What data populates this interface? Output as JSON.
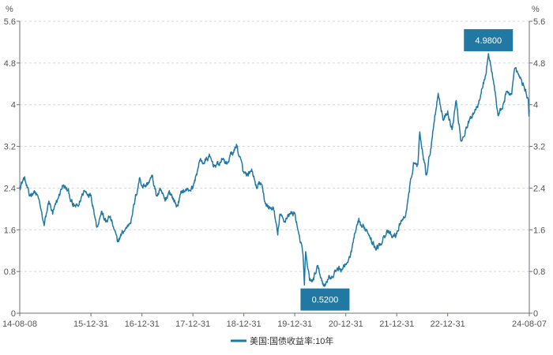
{
  "chart_data": {
    "type": "line",
    "unit_left": "%",
    "unit_right": "%",
    "y_ticks": [
      "0",
      "0.8",
      "1.6",
      "2.4",
      "3.2",
      "4",
      "4.8",
      "5.6"
    ],
    "ylim": [
      0,
      5.6
    ],
    "x_tick_labels": [
      "14-08-08",
      "15-12-31",
      "16-12-31",
      "17-12-31",
      "18-12-31",
      "19-12-31",
      "20-12-31",
      "21-12-31",
      "22-12-31",
      "24-08-07"
    ],
    "x_tick_dates": [
      "2014-08-08",
      "2015-12-31",
      "2016-12-31",
      "2017-12-31",
      "2018-12-31",
      "2019-12-31",
      "2020-12-31",
      "2021-12-31",
      "2022-12-31",
      "2024-08-07"
    ],
    "xlim": [
      "2014-08-08",
      "2024-08-07"
    ],
    "grid": "horizontal dashed",
    "legend_position": "bottom-center",
    "series": [
      {
        "name": "美国:国债收益率:10年",
        "color": "#2179a3",
        "points": [
          [
            "2014-08-08",
            2.42
          ],
          [
            "2014-09-10",
            2.6
          ],
          [
            "2014-10-15",
            2.25
          ],
          [
            "2014-11-20",
            2.35
          ],
          [
            "2014-12-20",
            2.2
          ],
          [
            "2015-01-30",
            1.68
          ],
          [
            "2015-03-05",
            2.15
          ],
          [
            "2015-04-01",
            1.9
          ],
          [
            "2015-05-10",
            2.2
          ],
          [
            "2015-06-10",
            2.45
          ],
          [
            "2015-07-20",
            2.35
          ],
          [
            "2015-08-25",
            2.05
          ],
          [
            "2015-10-01",
            2.05
          ],
          [
            "2015-11-10",
            2.35
          ],
          [
            "2015-12-31",
            2.27
          ],
          [
            "2016-01-20",
            2.0
          ],
          [
            "2016-02-11",
            1.65
          ],
          [
            "2016-03-15",
            1.95
          ],
          [
            "2016-04-15",
            1.75
          ],
          [
            "2016-05-15",
            1.85
          ],
          [
            "2016-06-15",
            1.6
          ],
          [
            "2016-07-08",
            1.37
          ],
          [
            "2016-08-15",
            1.55
          ],
          [
            "2016-09-15",
            1.65
          ],
          [
            "2016-10-15",
            1.8
          ],
          [
            "2016-11-10",
            2.15
          ],
          [
            "2016-12-15",
            2.6
          ],
          [
            "2016-12-31",
            2.45
          ],
          [
            "2017-01-31",
            2.45
          ],
          [
            "2017-03-13",
            2.62
          ],
          [
            "2017-04-15",
            2.25
          ],
          [
            "2017-05-15",
            2.35
          ],
          [
            "2017-06-15",
            2.15
          ],
          [
            "2017-07-15",
            2.35
          ],
          [
            "2017-09-07",
            2.05
          ],
          [
            "2017-10-15",
            2.35
          ],
          [
            "2017-11-15",
            2.35
          ],
          [
            "2017-12-31",
            2.41
          ],
          [
            "2018-01-31",
            2.72
          ],
          [
            "2018-02-21",
            2.95
          ],
          [
            "2018-03-20",
            2.88
          ],
          [
            "2018-04-25",
            3.0
          ],
          [
            "2018-05-30",
            2.85
          ],
          [
            "2018-06-30",
            2.85
          ],
          [
            "2018-07-31",
            2.96
          ],
          [
            "2018-08-31",
            2.86
          ],
          [
            "2018-09-30",
            3.05
          ],
          [
            "2018-10-25",
            3.12
          ],
          [
            "2018-11-08",
            3.24
          ],
          [
            "2018-11-30",
            3.0
          ],
          [
            "2018-12-31",
            2.69
          ],
          [
            "2019-01-31",
            2.63
          ],
          [
            "2019-02-28",
            2.72
          ],
          [
            "2019-03-31",
            2.41
          ],
          [
            "2019-04-30",
            2.5
          ],
          [
            "2019-05-31",
            2.14
          ],
          [
            "2019-06-30",
            2.0
          ],
          [
            "2019-07-31",
            2.02
          ],
          [
            "2019-08-31",
            1.5
          ],
          [
            "2019-09-15",
            1.9
          ],
          [
            "2019-10-15",
            1.75
          ],
          [
            "2019-11-15",
            1.9
          ],
          [
            "2019-12-31",
            1.92
          ],
          [
            "2020-01-31",
            1.51
          ],
          [
            "2020-02-28",
            1.13
          ],
          [
            "2020-03-09",
            0.54
          ],
          [
            "2020-03-18",
            1.18
          ],
          [
            "2020-04-15",
            0.63
          ],
          [
            "2020-05-15",
            0.64
          ],
          [
            "2020-06-08",
            0.91
          ],
          [
            "2020-07-15",
            0.62
          ],
          [
            "2020-08-04",
            0.52
          ],
          [
            "2020-08-31",
            0.72
          ],
          [
            "2020-09-30",
            0.68
          ],
          [
            "2020-10-31",
            0.87
          ],
          [
            "2020-11-30",
            0.84
          ],
          [
            "2020-12-31",
            0.93
          ],
          [
            "2021-01-31",
            1.07
          ],
          [
            "2021-02-28",
            1.44
          ],
          [
            "2021-03-31",
            1.74
          ],
          [
            "2021-04-30",
            1.65
          ],
          [
            "2021-05-31",
            1.6
          ],
          [
            "2021-06-30",
            1.45
          ],
          [
            "2021-07-31",
            1.24
          ],
          [
            "2021-08-31",
            1.3
          ],
          [
            "2021-09-30",
            1.49
          ],
          [
            "2021-10-31",
            1.55
          ],
          [
            "2021-11-30",
            1.45
          ],
          [
            "2021-12-31",
            1.52
          ],
          [
            "2022-01-31",
            1.78
          ],
          [
            "2022-02-28",
            1.83
          ],
          [
            "2022-03-31",
            2.32
          ],
          [
            "2022-04-30",
            2.89
          ],
          [
            "2022-05-31",
            2.85
          ],
          [
            "2022-06-14",
            3.48
          ],
          [
            "2022-07-31",
            2.65
          ],
          [
            "2022-08-31",
            3.15
          ],
          [
            "2022-09-30",
            3.8
          ],
          [
            "2022-10-24",
            4.22
          ],
          [
            "2022-11-30",
            3.7
          ],
          [
            "2022-12-31",
            3.88
          ],
          [
            "2023-01-31",
            3.52
          ],
          [
            "2023-03-02",
            4.08
          ],
          [
            "2023-04-06",
            3.3
          ],
          [
            "2023-05-31",
            3.65
          ],
          [
            "2023-06-30",
            3.84
          ],
          [
            "2023-07-31",
            3.97
          ],
          [
            "2023-08-31",
            4.3
          ],
          [
            "2023-09-30",
            4.57
          ],
          [
            "2023-10-19",
            4.98
          ],
          [
            "2023-11-30",
            4.37
          ],
          [
            "2023-12-27",
            3.79
          ],
          [
            "2024-01-31",
            3.99
          ],
          [
            "2024-02-29",
            4.25
          ],
          [
            "2024-03-31",
            4.2
          ],
          [
            "2024-04-25",
            4.7
          ],
          [
            "2024-05-31",
            4.51
          ],
          [
            "2024-06-30",
            4.36
          ],
          [
            "2024-07-15",
            4.23
          ],
          [
            "2024-07-31",
            4.09
          ],
          [
            "2024-08-05",
            3.78
          ],
          [
            "2024-08-07",
            3.9
          ]
        ]
      }
    ],
    "annotations": [
      {
        "label": "4.9800",
        "x": "2023-10-19",
        "y": 4.98,
        "kind": "max"
      },
      {
        "label": "0.5200",
        "x": "2020-08-04",
        "y": 0.52,
        "kind": "min"
      }
    ]
  }
}
